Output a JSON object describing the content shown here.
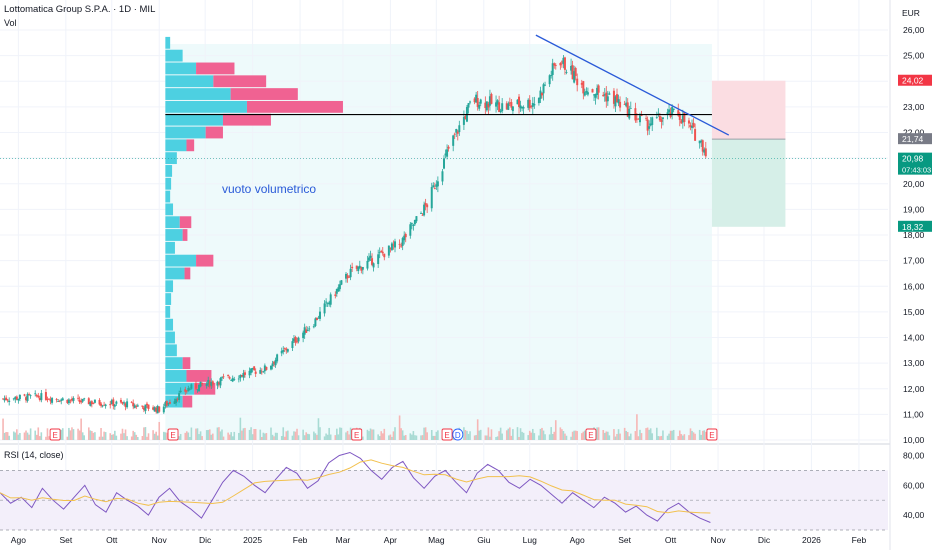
{
  "header": {
    "title": "Lottomatica Group S.P.A. · 1D · MIL",
    "volume_label": "Vol",
    "currency": "EUR"
  },
  "rsi": {
    "label": "RSI (14, close)",
    "ticks": [
      "80,00",
      "60,00",
      "40,00"
    ]
  },
  "annotation": {
    "text": "vuoto volumetrico"
  },
  "price_badges": {
    "target": "24,02",
    "entry": "21,74",
    "current": "20,98",
    "countdown": "07:43:03",
    "stop": "18,32"
  },
  "colors": {
    "up": "#26a69a",
    "down": "#ef5350",
    "trendline": "#2a5ad8",
    "profile_up": "#4dd0e1",
    "profile_down": "#f06292",
    "rsi_line": "#7e57c2",
    "rsi_ma": "#f2c14e",
    "target_zone": "#fbdde2",
    "stop_zone": "#d6efe8"
  },
  "chart_data": [
    {
      "type": "candlestick",
      "title": "Lottomatica Group S.P.A. · 1D · MIL",
      "x_ticks": [
        "Ago",
        "Set",
        "Ott",
        "Nov",
        "Dic",
        "2025",
        "Feb",
        "Mar",
        "Apr",
        "Mag",
        "Giu",
        "Lug",
        "Ago",
        "Set",
        "Ott",
        "Nov",
        "Dic",
        "2026",
        "Feb"
      ],
      "y_ticks": [
        "25,00",
        "24,00",
        "23,00",
        "22,00",
        "21,00",
        "20,00",
        "19,00",
        "18,00",
        "17,00",
        "16,00",
        "15,00",
        "14,00",
        "13,00",
        "12,00",
        "11,00",
        "10,00"
      ],
      "y_top_label": "26,00",
      "ylim": [
        10,
        26
      ],
      "price_path": [
        {
          "date": "2024-07-20",
          "price": 11.6
        },
        {
          "date": "2024-08-15",
          "price": 11.7
        },
        {
          "date": "2024-09-10",
          "price": 11.5
        },
        {
          "date": "2024-10-10",
          "price": 11.4
        },
        {
          "date": "2024-11-01",
          "price": 11.2
        },
        {
          "date": "2024-11-20",
          "price": 12.0
        },
        {
          "date": "2024-12-15",
          "price": 12.4
        },
        {
          "date": "2025-01-10",
          "price": 12.8
        },
        {
          "date": "2025-02-10",
          "price": 14.6
        },
        {
          "date": "2025-03-05",
          "price": 16.5
        },
        {
          "date": "2025-03-25",
          "price": 17.2
        },
        {
          "date": "2025-04-08",
          "price": 17.7
        },
        {
          "date": "2025-04-25",
          "price": 19.2
        },
        {
          "date": "2025-05-10",
          "price": 21.5
        },
        {
          "date": "2025-05-25",
          "price": 23.3
        },
        {
          "date": "2025-06-15",
          "price": 23.0
        },
        {
          "date": "2025-07-05",
          "price": 23.2
        },
        {
          "date": "2025-07-20",
          "price": 24.9
        },
        {
          "date": "2025-08-05",
          "price": 23.8
        },
        {
          "date": "2025-08-25",
          "price": 23.3
        },
        {
          "date": "2025-09-15",
          "price": 22.3
        },
        {
          "date": "2025-10-05",
          "price": 22.8
        },
        {
          "date": "2025-10-20",
          "price": 21.7
        },
        {
          "date": "2025-10-27",
          "price": 20.98
        }
      ],
      "horizontal_level": 22.7,
      "trendline": {
        "start": {
          "date": "2025-07-05",
          "price": 25.8
        },
        "end": {
          "date": "2025-11-08",
          "price": 21.9
        }
      },
      "position": {
        "entry": 21.74,
        "target": 24.02,
        "stop": 18.32,
        "current": 20.98
      },
      "volume_profile": [
        {
          "price": 25.5,
          "up": 0.05,
          "down": 0.0
        },
        {
          "price": 25.0,
          "up": 0.18,
          "down": 0.0
        },
        {
          "price": 24.5,
          "up": 0.32,
          "down": 0.4
        },
        {
          "price": 24.0,
          "up": 0.5,
          "down": 0.55
        },
        {
          "price": 23.5,
          "up": 0.68,
          "down": 0.7
        },
        {
          "price": 23.0,
          "up": 0.85,
          "down": 1.0
        },
        {
          "price": 22.5,
          "up": 0.6,
          "down": 0.5
        },
        {
          "price": 22.0,
          "up": 0.42,
          "down": 0.18
        },
        {
          "price": 21.5,
          "up": 0.22,
          "down": 0.08
        },
        {
          "price": 21.0,
          "up": 0.12,
          "down": 0.0
        },
        {
          "price": 20.5,
          "up": 0.07,
          "down": 0.0
        },
        {
          "price": 20.0,
          "up": 0.06,
          "down": 0.0
        },
        {
          "price": 19.5,
          "up": 0.05,
          "down": 0.0
        },
        {
          "price": 19.0,
          "up": 0.08,
          "down": 0.0
        },
        {
          "price": 18.5,
          "up": 0.15,
          "down": 0.12
        },
        {
          "price": 18.0,
          "up": 0.18,
          "down": 0.05
        },
        {
          "price": 17.5,
          "up": 0.1,
          "down": 0.0
        },
        {
          "price": 17.0,
          "up": 0.32,
          "down": 0.18
        },
        {
          "price": 16.5,
          "up": 0.2,
          "down": 0.06
        },
        {
          "price": 16.0,
          "up": 0.08,
          "down": 0.0
        },
        {
          "price": 15.5,
          "up": 0.06,
          "down": 0.0
        },
        {
          "price": 15.0,
          "up": 0.05,
          "down": 0.0
        },
        {
          "price": 14.5,
          "up": 0.08,
          "down": 0.0
        },
        {
          "price": 14.0,
          "up": 0.1,
          "down": 0.0
        },
        {
          "price": 13.5,
          "up": 0.12,
          "down": 0.0
        },
        {
          "price": 13.0,
          "up": 0.18,
          "down": 0.08
        },
        {
          "price": 12.5,
          "up": 0.22,
          "down": 0.26
        },
        {
          "price": 12.0,
          "up": 0.3,
          "down": 0.22
        },
        {
          "price": 11.5,
          "up": 0.18,
          "down": 0.1
        }
      ],
      "event_markers": [
        {
          "date": "2024-08-25",
          "label": "E"
        },
        {
          "date": "2024-11-10",
          "label": "E"
        },
        {
          "date": "2025-03-10",
          "label": "E"
        },
        {
          "date": "2025-05-08",
          "label": "E"
        },
        {
          "date": "2025-05-15",
          "label": "D"
        },
        {
          "date": "2025-08-10",
          "label": "E"
        },
        {
          "date": "2025-10-28",
          "label": "E"
        }
      ]
    },
    {
      "type": "line",
      "title": "RSI (14, close)",
      "y_ticks": [
        "80,00",
        "60,00",
        "40,00"
      ],
      "ylim": [
        30,
        85
      ],
      "levels": [
        70,
        50,
        30
      ],
      "series": [
        {
          "values": [
            55,
            48,
            52,
            45,
            58,
            50,
            44,
            52,
            60,
            47,
            42,
            55,
            50,
            46,
            40,
            52,
            58,
            49,
            44,
            38,
            50,
            62,
            70,
            66,
            60,
            55,
            64,
            72,
            68,
            58,
            63,
            75,
            80,
            82,
            78,
            70,
            64,
            72,
            76,
            65,
            58,
            66,
            70,
            62,
            55,
            68,
            74,
            70,
            62,
            58,
            64,
            60,
            54,
            48,
            55,
            50,
            45,
            52,
            48,
            42,
            46,
            40,
            36,
            44,
            48,
            42,
            38,
            35
          ]
        }
      ]
    }
  ]
}
